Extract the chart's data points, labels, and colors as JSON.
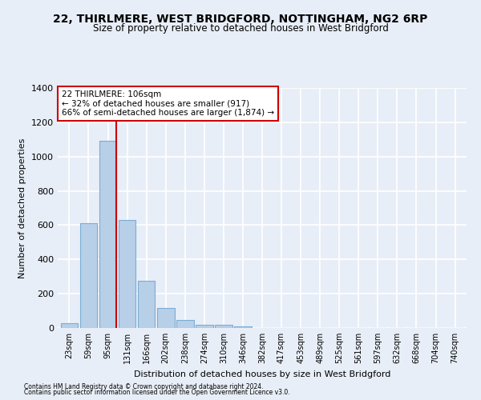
{
  "title": "22, THIRLMERE, WEST BRIDGFORD, NOTTINGHAM, NG2 6RP",
  "subtitle": "Size of property relative to detached houses in West Bridgford",
  "xlabel": "Distribution of detached houses by size in West Bridgford",
  "ylabel": "Number of detached properties",
  "footnote1": "Contains HM Land Registry data © Crown copyright and database right 2024.",
  "footnote2": "Contains public sector information licensed under the Open Government Licence v3.0.",
  "bar_labels": [
    "23sqm",
    "59sqm",
    "95sqm",
    "131sqm",
    "166sqm",
    "202sqm",
    "238sqm",
    "274sqm",
    "310sqm",
    "346sqm",
    "382sqm",
    "417sqm",
    "453sqm",
    "489sqm",
    "525sqm",
    "561sqm",
    "597sqm",
    "632sqm",
    "668sqm",
    "704sqm",
    "740sqm"
  ],
  "bar_values": [
    30,
    610,
    1090,
    630,
    275,
    115,
    45,
    20,
    20,
    10,
    0,
    0,
    0,
    0,
    0,
    0,
    0,
    0,
    0,
    0,
    0
  ],
  "bar_color": "#b8cfe8",
  "bar_edgecolor": "#7aadd4",
  "bar_linewidth": 0.8,
  "vline_index": 2,
  "vline_color": "#cc0000",
  "ylim": [
    0,
    1400
  ],
  "yticks": [
    0,
    200,
    400,
    600,
    800,
    1000,
    1200,
    1400
  ],
  "annotation_text": "22 THIRLMERE: 106sqm\n← 32% of detached houses are smaller (917)\n66% of semi-detached houses are larger (1,874) →",
  "annotation_box_color": "#ffffff",
  "annotation_border_color": "#cc0000",
  "bg_color": "#e8eef7",
  "plot_bg_color": "#e8eef7",
  "grid_color": "#ffffff",
  "title_fontsize": 10,
  "subtitle_fontsize": 8.5,
  "xlabel_fontsize": 8,
  "ylabel_fontsize": 8,
  "tick_fontsize": 7,
  "annotation_fontsize": 7.5,
  "footnote_fontsize": 5.5
}
